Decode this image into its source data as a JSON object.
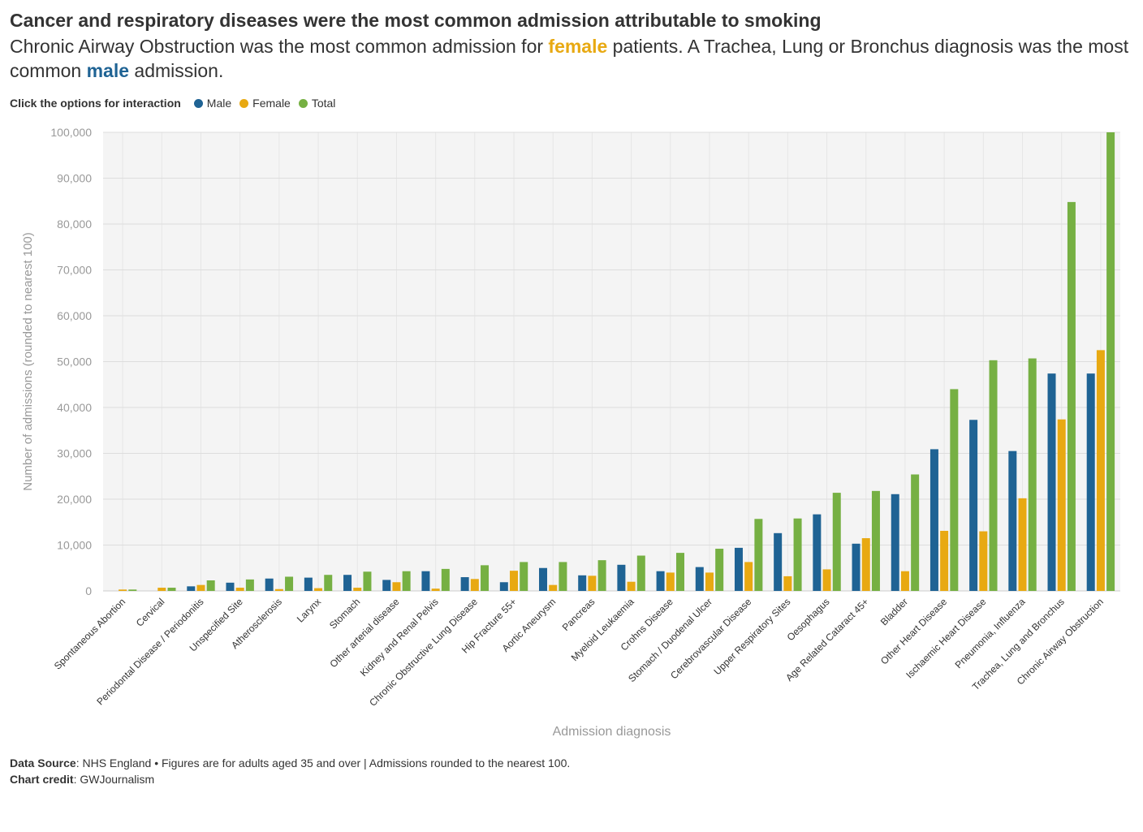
{
  "header": {
    "title": "Cancer and respiratory diseases were the most common admission attributable to smoking",
    "subtitle_part1": "Chronic Airway Obstruction was the most common admission for ",
    "subtitle_female": "female",
    "subtitle_part2": " patients. A Trachea, Lung or Bronchus diagnosis was the most common ",
    "subtitle_male": "male",
    "subtitle_part3": " admission."
  },
  "legend": {
    "title": "Click the options for interaction",
    "items": [
      {
        "label": "Male",
        "color": "#1f6394"
      },
      {
        "label": "Female",
        "color": "#e8a912"
      },
      {
        "label": "Total",
        "color": "#76b043"
      }
    ]
  },
  "footer": {
    "source_label": "Data Source",
    "source_text": ": NHS England • Figures are for adults aged 35 and over | Admissions rounded to the nearest 100.",
    "credit_label": "Chart credit",
    "credit_text": ": GWJournalism"
  },
  "chart_data": {
    "type": "bar",
    "xlabel": "Admission diagnosis",
    "ylabel": "Number of admissions (rounded to nearest 100)",
    "ylim": [
      0,
      100000
    ],
    "yticks": [
      0,
      10000,
      20000,
      30000,
      40000,
      50000,
      60000,
      70000,
      80000,
      90000,
      100000
    ],
    "ytick_labels": [
      "0",
      "10,000",
      "20,000",
      "30,000",
      "40,000",
      "50,000",
      "60,000",
      "70,000",
      "80,000",
      "90,000",
      "100,000"
    ],
    "grid": true,
    "categories": [
      "Spontaneous Abortion",
      "Cervical",
      "Periodontal Disease / Periodonitis",
      "Unspecified Site",
      "Atherosclerosis",
      "Larynx",
      "Stomach",
      "Other arterial disease",
      "Kidney and Renal Pelvis",
      "Chronic Obstructive Lung Disease",
      "Hip Fracture 55+",
      "Aortic Aneurysm",
      "Pancreas",
      "Myeloid Leukaemia",
      "Crohns Disease",
      "Stomach / Duodenal Ulcer",
      "Cerebrovascular Disease",
      "Upper Respiratory Sites",
      "Oesophagus",
      "Age Related Cataract 45+",
      "Bladder",
      "Other Heart Disease",
      "Ischaemic Heart Disease",
      "Pneumonia, Influenza",
      "Trachea, Lung and Bronchus",
      "Chronic Airway Obstruction"
    ],
    "series": [
      {
        "name": "Male",
        "color": "#1f6394",
        "values": [
          0,
          0,
          1000,
          1800,
          2700,
          2900,
          3500,
          2400,
          4300,
          3000,
          1900,
          5000,
          3400,
          5700,
          4300,
          5200,
          9400,
          12600,
          16700,
          10300,
          21100,
          30900,
          37300,
          30500,
          47400,
          47400
        ]
      },
      {
        "name": "Female",
        "color": "#e8a912",
        "values": [
          300,
          700,
          1300,
          700,
          400,
          600,
          700,
          1900,
          500,
          2600,
          4400,
          1300,
          3300,
          2000,
          4000,
          4000,
          6300,
          3200,
          4700,
          11500,
          4300,
          13100,
          13000,
          20200,
          37400,
          52500
        ]
      },
      {
        "name": "Total",
        "color": "#76b043",
        "values": [
          300,
          700,
          2300,
          2500,
          3100,
          3500,
          4200,
          4300,
          4800,
          5600,
          6300,
          6300,
          6700,
          7700,
          8300,
          9200,
          15700,
          15800,
          21400,
          21800,
          25400,
          44000,
          50300,
          50700,
          84800,
          100000
        ]
      }
    ]
  }
}
